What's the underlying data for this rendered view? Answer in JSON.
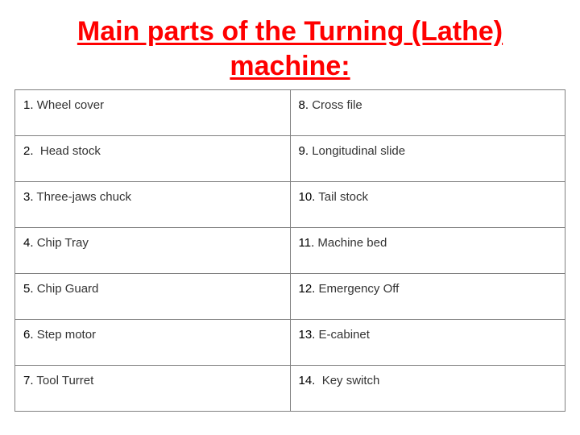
{
  "title": "Main parts of the Turning (Lathe) machine:",
  "table": {
    "columns": [
      "left",
      "right"
    ],
    "rows": [
      {
        "left": {
          "num": "1.",
          "label": "Wheel cover"
        },
        "right": {
          "num": "8.",
          "label": "Cross file"
        }
      },
      {
        "left": {
          "num": "2.",
          "label": "Head stock"
        },
        "right": {
          "num": "9.",
          "label": "Longitudinal slide"
        }
      },
      {
        "left": {
          "num": "3.",
          "label": "Three-jaws chuck"
        },
        "right": {
          "num": "10.",
          "label": "Tail stock"
        }
      },
      {
        "left": {
          "num": "4.",
          "label": "Chip Tray"
        },
        "right": {
          "num": "11.",
          "label": "Machine bed"
        }
      },
      {
        "left": {
          "num": "5.",
          "label": "Chip Guard"
        },
        "right": {
          "num": "12.",
          "label": "Emergency Off"
        }
      },
      {
        "left": {
          "num": "6.",
          "label": "Step motor"
        },
        "right": {
          "num": "13.",
          "label": "E-cabinet"
        }
      },
      {
        "left": {
          "num": "7.",
          "label": "Tool Turret"
        },
        "right": {
          "num": "14.",
          "label": "Key switch"
        }
      }
    ],
    "border_color": "#808080",
    "text_color": "#333333",
    "title_color": "#ff0000",
    "background_color": "#ffffff",
    "title_fontsize": 34,
    "cell_fontsize": 15
  }
}
